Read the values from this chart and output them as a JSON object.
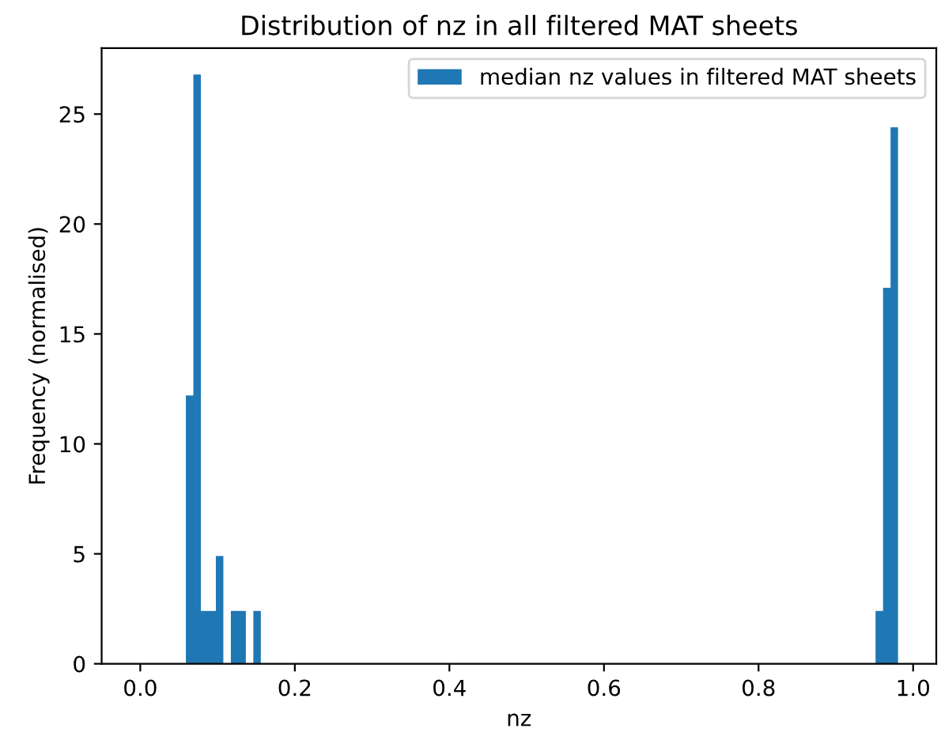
{
  "chart_data": {
    "type": "histogram",
    "title": "Distribution of nz in all filtered MAT sheets",
    "xlabel": "nz",
    "ylabel": "Frequency (normalised)",
    "bins": [
      0.059,
      0.0687,
      0.0784,
      0.0881,
      0.0978,
      0.1075,
      0.1172,
      0.1269,
      0.1366,
      0.1463,
      0.156,
      0.1657,
      0.1754,
      0.1851,
      0.1948,
      0.2045,
      0.2142,
      0.2239,
      0.2336,
      0.2433,
      0.253,
      0.2627,
      0.2724,
      0.2821,
      0.2918,
      0.3015,
      0.3112,
      0.3209,
      0.3306,
      0.3403,
      0.35,
      0.3597,
      0.3694,
      0.3791,
      0.3888,
      0.3985,
      0.4082,
      0.4179,
      0.4276,
      0.4373,
      0.447,
      0.4567,
      0.4664,
      0.4761,
      0.4858,
      0.4955,
      0.5052,
      0.5149,
      0.5246,
      0.5343,
      0.544,
      0.5537,
      0.5634,
      0.5731,
      0.5828,
      0.5925,
      0.6022,
      0.6119,
      0.6216,
      0.6313,
      0.641,
      0.6507,
      0.6604,
      0.6701,
      0.6798,
      0.6895,
      0.6992,
      0.7089,
      0.7186,
      0.7283,
      0.738,
      0.7477,
      0.7574,
      0.7671,
      0.7768,
      0.7865,
      0.7962,
      0.8059,
      0.8156,
      0.8253,
      0.835,
      0.8447,
      0.8544,
      0.8641,
      0.8738,
      0.8835,
      0.8932,
      0.9029,
      0.9126,
      0.9223,
      0.932,
      0.9417,
      0.9514,
      0.9611,
      0.9708,
      0.9805
    ],
    "series": [
      {
        "name": "median nz values in filtered MAT sheets",
        "color": "#1f77b4",
        "values": [
          12.2,
          26.8,
          2.4,
          2.4,
          4.9,
          0,
          2.4,
          2.4,
          0,
          2.4,
          0,
          0,
          0,
          0,
          0,
          0,
          0,
          0,
          0,
          0,
          0,
          0,
          0,
          0,
          0,
          0,
          0,
          0,
          0,
          0,
          0,
          0,
          0,
          0,
          0,
          0,
          0,
          0,
          0,
          0,
          0,
          0,
          0,
          0,
          0,
          0,
          0,
          0,
          0,
          0,
          0,
          0,
          0,
          0,
          0,
          0,
          0,
          0,
          0,
          0,
          0,
          0,
          0,
          0,
          0,
          0,
          0,
          0,
          0,
          0,
          0,
          0,
          0,
          0,
          0,
          0,
          0,
          0,
          0,
          0,
          0,
          0,
          0,
          0,
          0,
          0,
          0,
          0,
          0,
          0,
          0,
          0,
          2.4,
          17.1,
          24.4
        ]
      }
    ],
    "xlim": [
      -0.05,
      1.03
    ],
    "ylim": [
      0,
      28
    ],
    "xticks": [
      {
        "value": 0,
        "label": "0.0"
      },
      {
        "value": 0.2,
        "label": "0.2"
      },
      {
        "value": 0.4,
        "label": "0.4"
      },
      {
        "value": 0.6,
        "label": "0.6"
      },
      {
        "value": 0.8,
        "label": "0.8"
      },
      {
        "value": 1.0,
        "label": "1.0"
      }
    ],
    "yticks": [
      0,
      5,
      10,
      15,
      20,
      25
    ],
    "grid": false,
    "legend": "top right"
  }
}
